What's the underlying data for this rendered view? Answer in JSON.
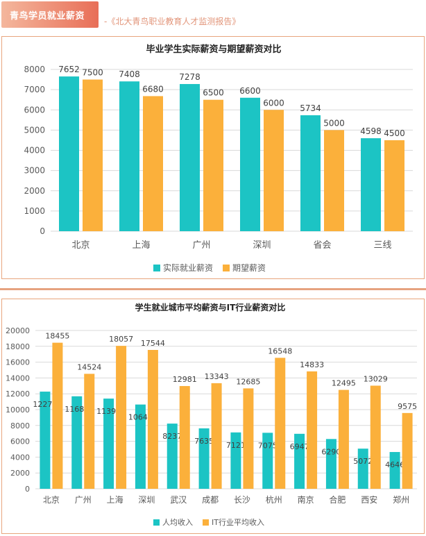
{
  "header": {
    "badge_label": "青鸟学员就业薪资",
    "source": "-《北大青鸟职业教育人才监测报告》"
  },
  "colors": {
    "actual": "#1cc4c4",
    "expected": "#fbb03b",
    "border": "#e8a57d"
  },
  "chart_data": [
    {
      "type": "bar",
      "title": "毕业学生实际薪资与期望薪资对比",
      "categories": [
        "北京",
        "上海",
        "广州",
        "深圳",
        "省会",
        "三线"
      ],
      "series": [
        {
          "name": "实际就业薪资",
          "values": [
            7652,
            7408,
            7278,
            6600,
            5734,
            4598
          ]
        },
        {
          "name": "期望薪资",
          "values": [
            7500,
            6680,
            6500,
            6000,
            5000,
            4500
          ]
        }
      ],
      "ylim": [
        0,
        8000
      ],
      "yticks": [
        0,
        1000,
        2000,
        3000,
        4000,
        5000,
        6000,
        7000,
        8000
      ],
      "grid": true,
      "legend": "bottom"
    },
    {
      "type": "bar",
      "title": "学生就业城市平均薪资与IT行业薪资对比",
      "categories": [
        "北京",
        "广州",
        "上海",
        "深圳",
        "武汉",
        "成都",
        "长沙",
        "杭州",
        "南京",
        "合肥",
        "西安",
        "郑州"
      ],
      "series": [
        {
          "name": "人均收入",
          "values": [
            12277,
            11687,
            11396,
            10646,
            8237,
            7635,
            7121,
            7075,
            6947,
            6290,
            5072,
            4646
          ]
        },
        {
          "name": "IT行业平均收入",
          "values": [
            18455,
            14524,
            18057,
            17544,
            12981,
            13343,
            12685,
            16548,
            14833,
            12495,
            13029,
            9575
          ]
        }
      ],
      "ylim": [
        0,
        20000
      ],
      "yticks": [
        0,
        2000,
        4000,
        6000,
        8000,
        10000,
        12000,
        14000,
        16000,
        18000,
        20000
      ],
      "grid": true,
      "legend": "bottom"
    }
  ]
}
